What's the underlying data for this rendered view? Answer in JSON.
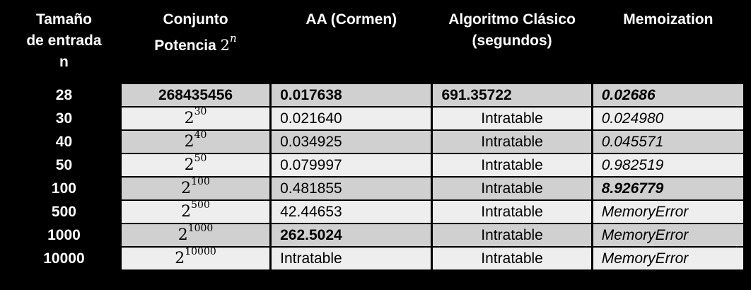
{
  "headers": {
    "size_line1": "Tamaño",
    "size_line2": "de entrada",
    "size_line3": "n",
    "power_line1": "Conjunto",
    "power_line2": "Potencia",
    "power_base": "2",
    "power_exp": "n",
    "aa": "AA (Cormen)",
    "classic_line1": "Algoritmo Clásico",
    "classic_line2": "(segundos)",
    "memo": "Memoization"
  },
  "rows": [
    {
      "n": "28",
      "power": "268435456",
      "aa": "0.017638",
      "classic": "691.35722",
      "memo": "0.02686"
    },
    {
      "n": "30",
      "power_base": "2",
      "power_exp": "30",
      "aa": "0.021640",
      "classic": "Intratable",
      "memo": "0.024980"
    },
    {
      "n": "40",
      "power_base": "2",
      "power_exp": "40",
      "aa": "0.034925",
      "classic": "Intratable",
      "memo": "0.045571"
    },
    {
      "n": "50",
      "power_base": "2",
      "power_exp": "50",
      "aa": "0.079997",
      "classic": "Intratable",
      "memo": "0.982519"
    },
    {
      "n": "100",
      "power_base": "2",
      "power_exp": "100",
      "aa": "0.481855",
      "classic": "Intratable",
      "memo": "8.926779"
    },
    {
      "n": "500",
      "power_base": "2",
      "power_exp": "500",
      "aa": "42.44653",
      "classic": "Intratable",
      "memo": "MemoryError"
    },
    {
      "n": "1000",
      "power_base": "2",
      "power_exp": "1000",
      "aa": "262.5024",
      "classic": "Intratable",
      "memo": "MemoryError"
    },
    {
      "n": "10000",
      "power_base": "2",
      "power_exp": "10000",
      "aa": "Intratable",
      "classic": "Intratable",
      "memo": "MemoryError"
    }
  ]
}
